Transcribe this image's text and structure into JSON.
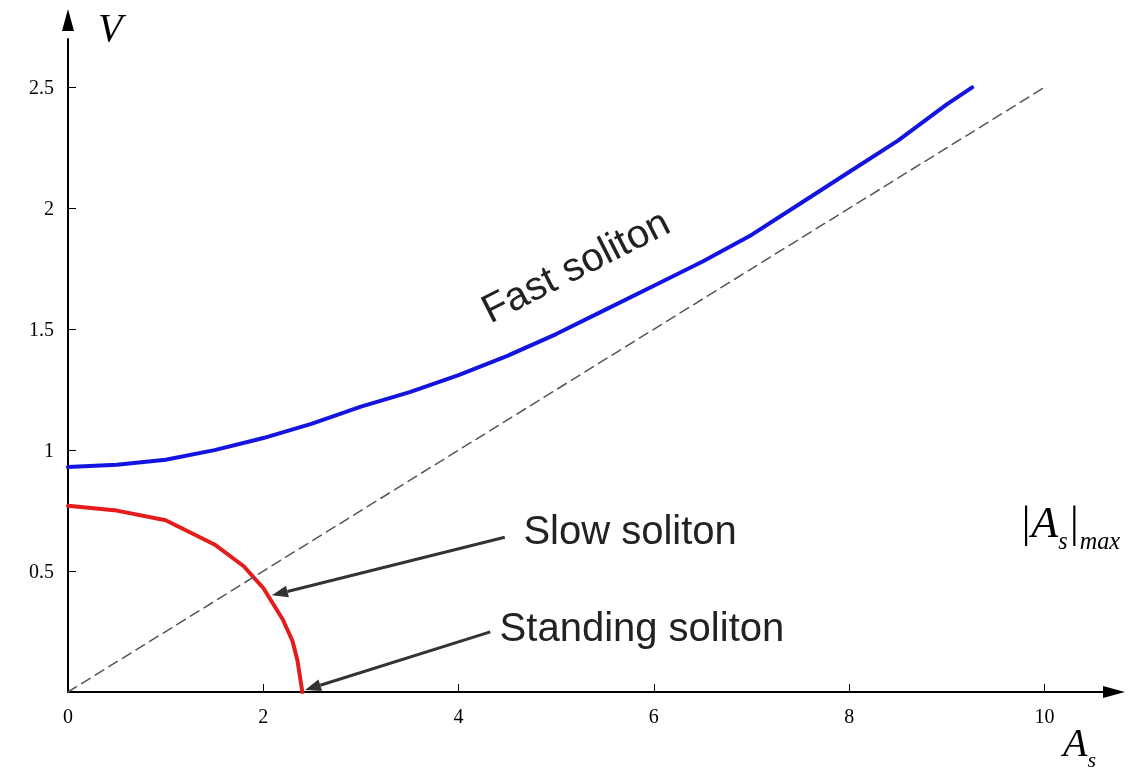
{
  "chart_data": {
    "type": "line",
    "xlabel": "A$_{s}$",
    "ylabel": "V",
    "xlim": [
      0,
      10.6
    ],
    "ylim": [
      0,
      2.7
    ],
    "xticks": [
      0,
      2,
      4,
      6,
      8,
      10
    ],
    "yticks": [
      0.5,
      1,
      1.5,
      2,
      2.5
    ],
    "grid": false,
    "marker": "none",
    "series": [
      {
        "color": "#1414e0",
        "x": [
          0,
          0.5,
          1,
          1.5,
          2,
          2.5,
          3,
          3.5,
          4,
          4.5,
          5,
          5.5,
          6,
          6.5,
          7,
          7.5,
          8,
          8.5,
          9,
          9.26
        ],
        "values": [
          0.93,
          0.94,
          0.96,
          1,
          1.05,
          1.11,
          1.18,
          1.24,
          1.31,
          1.39,
          1.48,
          1.58,
          1.68,
          1.78,
          1.89,
          2.02,
          2.15,
          2.28,
          2.43,
          2.5
        ]
      },
      {
        "color": "#e41c1c",
        "x": [
          0,
          0.5,
          1,
          1.5,
          1.8,
          2,
          2.2,
          2.3,
          2.35,
          2.4
        ],
        "values": [
          0.77,
          0.75,
          0.71,
          0.61,
          0.52,
          0.43,
          0.3,
          0.21,
          0.13,
          0
        ]
      },
      {
        "color": "#555555",
        "line_style": "dashed",
        "x": [
          0,
          10
        ],
        "values": [
          0,
          2.5
        ]
      }
    ],
    "annotations": [
      "Fast soliton",
      "Slow soliton",
      "Standing soliton",
      "|A$_{s}$|$_{max}$"
    ]
  }
}
